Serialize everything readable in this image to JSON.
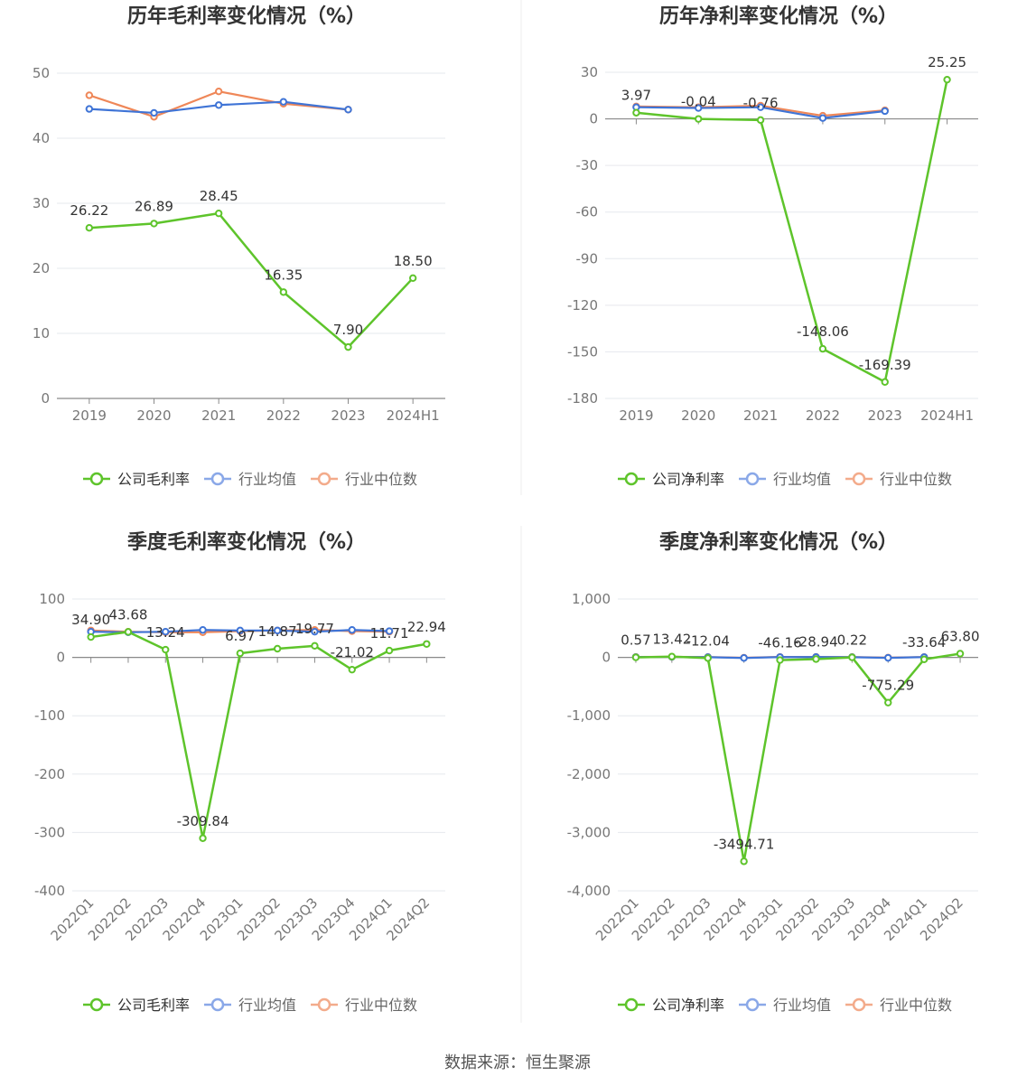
{
  "footer": {
    "source": "数据来源：恒生聚源"
  },
  "colors": {
    "company": "#5ec42b",
    "industry_avg": "#3f74d6",
    "industry_median": "#ef8758",
    "grid": "#e6e8ee",
    "axis": "#8a8a8a"
  },
  "legend_icon": "circle-line-icon",
  "chart_data": [
    {
      "type": "line",
      "title": "历年毛利率变化情况（%）",
      "categories": [
        "2019",
        "2020",
        "2021",
        "2022",
        "2023",
        "2024H1"
      ],
      "ylim": [
        0,
        50
      ],
      "yticks": [
        "0",
        "10",
        "20",
        "30",
        "40",
        "50"
      ],
      "ytick_values": [
        0,
        10,
        20,
        30,
        40,
        50
      ],
      "legend": [
        "公司毛利率",
        "行业均值",
        "行业中位数"
      ],
      "series": [
        {
          "name": "公司毛利率",
          "values": [
            26.22,
            26.89,
            28.45,
            16.35,
            7.9,
            18.5
          ],
          "labels": [
            "26.22",
            "26.89",
            "28.45",
            "16.35",
            "7.90",
            "18.50"
          ]
        },
        {
          "name": "行业均值",
          "values": [
            44.5,
            43.9,
            45.1,
            45.6,
            44.4,
            null
          ]
        },
        {
          "name": "行业中位数",
          "values": [
            46.6,
            43.3,
            47.2,
            45.3,
            44.4,
            null
          ]
        }
      ]
    },
    {
      "type": "line",
      "title": "历年净利率变化情况（%）",
      "categories": [
        "2019",
        "2020",
        "2021",
        "2022",
        "2023",
        "2024H1"
      ],
      "ylim": [
        -180,
        30
      ],
      "yticks": [
        "-180",
        "-150",
        "-120",
        "-90",
        "-60",
        "-30",
        "0",
        "30"
      ],
      "ytick_values": [
        -180,
        -150,
        -120,
        -90,
        -60,
        -30,
        0,
        30
      ],
      "legend": [
        "公司净利率",
        "行业均值",
        "行业中位数"
      ],
      "series": [
        {
          "name": "公司净利率",
          "values": [
            3.97,
            -0.04,
            -0.76,
            -148.06,
            -169.39,
            25.25
          ],
          "labels": [
            "3.97",
            "-0.04",
            "-0.76",
            "-148.06",
            "-169.39",
            "25.25"
          ]
        },
        {
          "name": "行业均值",
          "values": [
            7.5,
            7.0,
            7.5,
            0.5,
            5.0,
            null
          ]
        },
        {
          "name": "行业中位数",
          "values": [
            8.0,
            7.5,
            8.5,
            2.0,
            5.5,
            null
          ]
        }
      ]
    },
    {
      "type": "line",
      "title": "季度毛利率变化情况（%）",
      "categories": [
        "2022Q1",
        "2022Q2",
        "2022Q3",
        "2022Q4",
        "2023Q1",
        "2023Q2",
        "2023Q3",
        "2023Q4",
        "2024Q1",
        "2024Q2"
      ],
      "ylim": [
        -400,
        100
      ],
      "yticks": [
        "-400",
        "-300",
        "-200",
        "-100",
        "0",
        "100"
      ],
      "ytick_values": [
        -400,
        -300,
        -200,
        -100,
        0,
        100
      ],
      "legend": [
        "公司毛利率",
        "行业均值",
        "行业中位数"
      ],
      "series": [
        {
          "name": "公司毛利率",
          "values": [
            34.9,
            43.68,
            13.24,
            -309.84,
            6.97,
            14.87,
            19.77,
            -21.02,
            11.71,
            22.94
          ],
          "labels": [
            "34.90",
            "43.68",
            "13.24",
            "-309.84",
            "6.97",
            "14.87",
            "19.77",
            "-21.02",
            "11.71",
            "22.94"
          ]
        },
        {
          "name": "行业均值",
          "values": [
            44,
            43,
            44,
            47,
            46,
            46,
            44,
            47,
            45,
            null
          ]
        },
        {
          "name": "行业中位数",
          "values": [
            46,
            44,
            43,
            43,
            45,
            46,
            47,
            45,
            44,
            null
          ]
        }
      ]
    },
    {
      "type": "line",
      "title": "季度净利率变化情况（%）",
      "categories": [
        "2022Q1",
        "2022Q2",
        "2022Q3",
        "2022Q4",
        "2023Q1",
        "2023Q2",
        "2023Q3",
        "2023Q4",
        "2024Q1",
        "2024Q2"
      ],
      "ylim": [
        -4000,
        1000
      ],
      "yticks": [
        "-4,000",
        "-3,000",
        "-2,000",
        "-1,000",
        "0",
        "1,000"
      ],
      "ytick_values": [
        -4000,
        -3000,
        -2000,
        -1000,
        0,
        1000
      ],
      "legend": [
        "公司净利率",
        "行业均值",
        "行业中位数"
      ],
      "series": [
        {
          "name": "公司净利率",
          "values": [
            0.57,
            13.42,
            -12.04,
            -3494.71,
            -46.16,
            -28.94,
            0.22,
            -775.29,
            -33.64,
            63.8
          ],
          "labels": [
            "0.57",
            "13.42",
            "-12.04",
            "-3494.71",
            "-46.16",
            "-28.94",
            "0.22",
            "-775.29",
            "-33.64",
            "63.80"
          ]
        },
        {
          "name": "行业均值",
          "values": [
            5,
            8,
            4,
            -10,
            5,
            6,
            4,
            -8,
            5,
            null
          ]
        },
        {
          "name": "行业中位数",
          "values": [
            7,
            9,
            6,
            -5,
            7,
            8,
            6,
            -3,
            6,
            null
          ]
        }
      ]
    }
  ]
}
